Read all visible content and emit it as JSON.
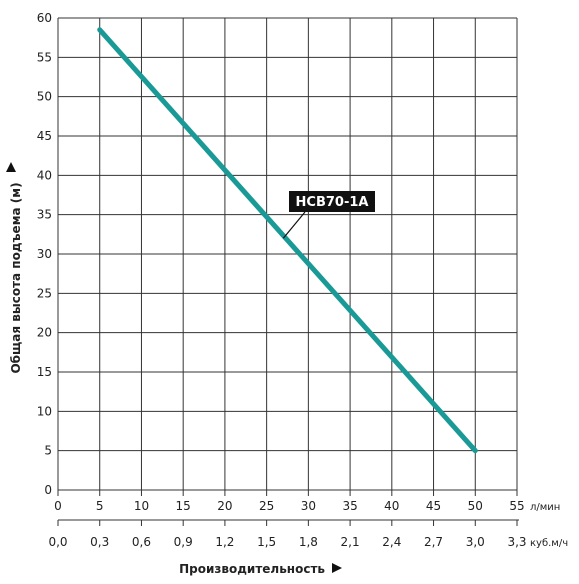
{
  "chart_data": {
    "type": "line",
    "ylabel": "Общая высота подъема (м)",
    "xlabel": "Производительность",
    "ylim": [
      0,
      60
    ],
    "xlim": [
      0,
      55
    ],
    "grid": true,
    "y_ticks": [
      "0",
      "5",
      "10",
      "15",
      "20",
      "25",
      "30",
      "35",
      "40",
      "45",
      "50",
      "55",
      "60"
    ],
    "x_ticks": [
      "0",
      "5",
      "10",
      "15",
      "20",
      "25",
      "30",
      "35",
      "40",
      "45",
      "50",
      "55"
    ],
    "x_unit": "л/мин",
    "x2_ticks": [
      "0,0",
      "0,3",
      "0,6",
      "0,9",
      "1,2",
      "1,5",
      "1,8",
      "2,1",
      "2,4",
      "2,7",
      "3,0",
      "3,3"
    ],
    "x2_unit": "куб.м/ч",
    "series": [
      {
        "name": "HCB70-1A",
        "color": "#1a9a96",
        "x": [
          5,
          50
        ],
        "y": [
          58.5,
          5
        ]
      }
    ],
    "annotation": {
      "text": "HCB70-1A",
      "points_to_x": 27,
      "points_to_y": 32
    }
  }
}
